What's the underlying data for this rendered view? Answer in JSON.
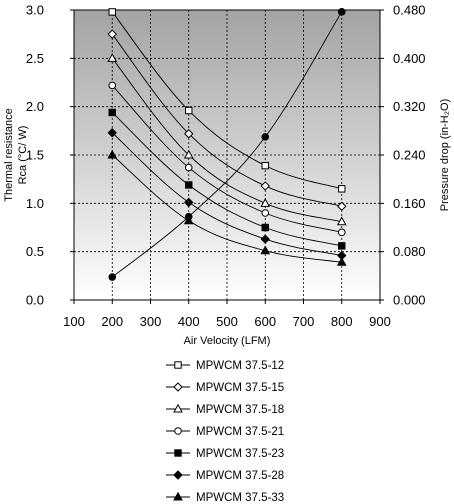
{
  "chart_data": {
    "type": "line",
    "title": "",
    "xlabel": "Air Velocity (LFM)",
    "ylabel_left": [
      "Thermal resistance",
      "Rca (°C/ W)"
    ],
    "ylabel_right": "Pressure drop (in-H₂O)",
    "xlim": [
      100,
      900
    ],
    "x_ticks": [
      "100",
      "200",
      "300",
      "400",
      "500",
      "600",
      "700",
      "800",
      "900"
    ],
    "ylim_left": [
      0,
      3.0
    ],
    "y_ticks_left": [
      "0.0",
      "0.5",
      "1.0",
      "1.5",
      "2.0",
      "2.5",
      "3.0"
    ],
    "ylim_right": [
      0,
      0.48
    ],
    "y_ticks_right": [
      "0.000",
      "0.080",
      "0.160",
      "0.240",
      "0.320",
      "0.400",
      "0.480"
    ],
    "grid": true,
    "legend_position": "bottom",
    "series": [
      {
        "name": "MPWCM  37.5-12",
        "marker": "square-open",
        "axis": "left",
        "x": [
          200,
          400,
          600,
          800
        ],
        "y": [
          2.98,
          1.96,
          1.39,
          1.15
        ]
      },
      {
        "name": "MPWCM  37.5-15",
        "marker": "diamond-open",
        "axis": "left",
        "x": [
          200,
          400,
          600,
          800
        ],
        "y": [
          2.75,
          1.72,
          1.18,
          0.97
        ]
      },
      {
        "name": "MPWCM  37.5-18",
        "marker": "triangle-open",
        "axis": "left",
        "x": [
          200,
          400,
          600,
          800
        ],
        "y": [
          2.5,
          1.5,
          1.0,
          0.81
        ]
      },
      {
        "name": "MPWCM  37.5-21",
        "marker": "circle-open",
        "axis": "left",
        "x": [
          200,
          400,
          600,
          800
        ],
        "y": [
          2.22,
          1.37,
          0.9,
          0.7
        ]
      },
      {
        "name": "MPWCM  37.5-23",
        "marker": "square-filled",
        "axis": "left",
        "x": [
          200,
          400,
          600,
          800
        ],
        "y": [
          1.94,
          1.19,
          0.75,
          0.56
        ]
      },
      {
        "name": "MPWCM  37.5-28",
        "marker": "diamond-filled",
        "axis": "left",
        "x": [
          200,
          400,
          600,
          800
        ],
        "y": [
          1.73,
          1.01,
          0.63,
          0.46
        ]
      },
      {
        "name": "MPWCM  37.5-33",
        "marker": "triangle-filled",
        "axis": "left",
        "x": [
          200,
          400,
          600,
          800
        ],
        "y": [
          1.5,
          0.82,
          0.51,
          0.39
        ]
      },
      {
        "name": "",
        "marker": "circle-filled",
        "axis": "right",
        "x": [
          200,
          400,
          600,
          800
        ],
        "y": [
          0.038,
          0.138,
          0.27,
          0.477
        ]
      }
    ]
  }
}
